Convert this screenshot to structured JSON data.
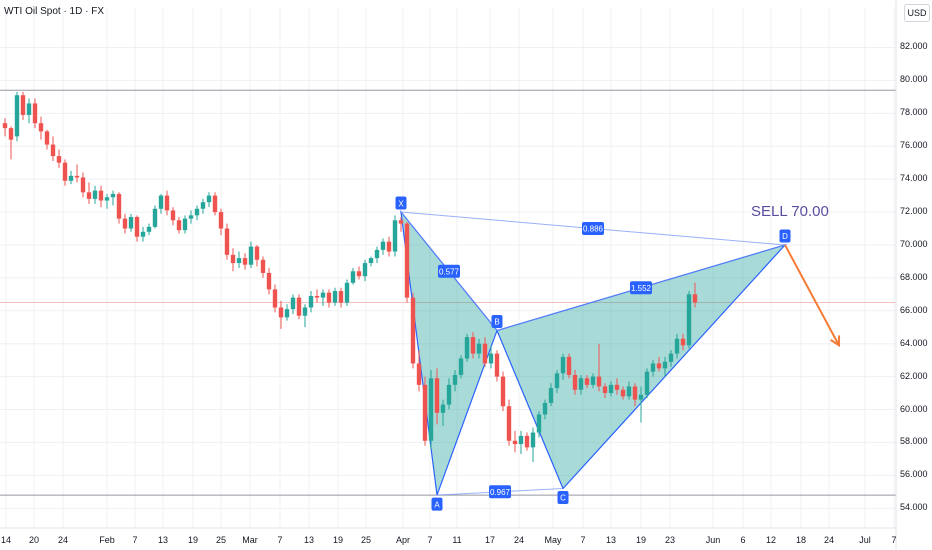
{
  "header": {
    "title": "WTI Oil Spot · 1D · FX",
    "currency": "USD"
  },
  "colors": {
    "up": "#26a69a",
    "down": "#ef5350",
    "pattern_fill": "#26a69a",
    "pattern_line": "#2962ff",
    "arrow": "#f57c36",
    "label_bg": "#2962ff",
    "sell_text": "#5b4c9e",
    "grid": "#eef0f4"
  },
  "chart_data": {
    "type": "candlestick",
    "symbol": "WTI Oil Spot",
    "interval": "1D",
    "ylim": [
      52.8,
      84.4
    ],
    "y_ticks": [
      82,
      80,
      78,
      76,
      74,
      72,
      70,
      68,
      66,
      64,
      62,
      60,
      58,
      56,
      54
    ],
    "y_tick_labels": [
      "82.000",
      "80.000",
      "78.000",
      "76.000",
      "74.000",
      "72.000",
      "70.000",
      "68.000",
      "66.000",
      "64.000",
      "62.000",
      "60.000",
      "58.000",
      "56.000",
      "54.000"
    ],
    "x_tick_labels": [
      "14",
      "20",
      "24",
      "Feb",
      "7",
      "13",
      "19",
      "25",
      "Mar",
      "7",
      "13",
      "19",
      "25",
      "Apr",
      "7",
      "11",
      "17",
      "24",
      "May",
      "7",
      "13",
      "19",
      "23",
      "Jun",
      "6",
      "12",
      "18",
      "24",
      "Jul",
      "7"
    ],
    "horizontal_lines": [
      {
        "name": "resistance",
        "value": 79.4
      },
      {
        "name": "support",
        "value": 54.8
      },
      {
        "name": "current",
        "value": 66.5
      }
    ],
    "candles": [
      [
        77.4,
        77.7,
        76.6,
        77.1
      ],
      [
        77.1,
        77.2,
        75.2,
        76.4
      ],
      [
        76.6,
        79.3,
        76.3,
        79.1
      ],
      [
        79.1,
        79.3,
        77.6,
        77.9
      ],
      [
        77.9,
        78.9,
        77.4,
        78.6
      ],
      [
        78.6,
        78.9,
        77.1,
        77.4
      ],
      [
        77.4,
        77.8,
        76.4,
        76.9
      ],
      [
        76.9,
        77.0,
        75.8,
        76.1
      ],
      [
        76.1,
        76.6,
        75.1,
        75.4
      ],
      [
        75.4,
        75.8,
        74.7,
        75.0
      ],
      [
        75.0,
        75.2,
        73.6,
        73.9
      ],
      [
        73.9,
        74.5,
        73.7,
        74.2
      ],
      [
        74.2,
        74.9,
        73.8,
        74.1
      ],
      [
        74.1,
        74.4,
        72.9,
        73.2
      ],
      [
        73.2,
        73.8,
        72.5,
        72.8
      ],
      [
        72.8,
        73.6,
        72.5,
        73.3
      ],
      [
        73.3,
        73.6,
        72.3,
        72.7
      ],
      [
        72.7,
        73.1,
        72.2,
        72.9
      ],
      [
        72.9,
        73.3,
        72.4,
        73.1
      ],
      [
        73.1,
        73.2,
        71.3,
        71.6
      ],
      [
        71.6,
        71.9,
        70.7,
        71.0
      ],
      [
        71.0,
        71.9,
        70.8,
        71.7
      ],
      [
        71.7,
        71.8,
        70.2,
        70.5
      ],
      [
        70.5,
        71.1,
        70.2,
        70.8
      ],
      [
        70.8,
        71.3,
        70.6,
        71.1
      ],
      [
        71.1,
        72.4,
        71.0,
        72.2
      ],
      [
        72.2,
        73.1,
        71.9,
        73.0
      ],
      [
        73.0,
        73.3,
        71.8,
        72.1
      ],
      [
        72.1,
        72.3,
        71.2,
        71.5
      ],
      [
        71.5,
        71.7,
        70.7,
        70.9
      ],
      [
        70.9,
        71.8,
        70.7,
        71.6
      ],
      [
        71.6,
        72.1,
        71.3,
        71.8
      ],
      [
        71.8,
        72.4,
        71.5,
        72.2
      ],
      [
        72.2,
        72.8,
        71.9,
        72.6
      ],
      [
        72.6,
        73.2,
        72.3,
        73.0
      ],
      [
        73.0,
        73.2,
        71.8,
        72.0
      ],
      [
        72.0,
        72.2,
        70.6,
        71.0
      ],
      [
        71.0,
        71.3,
        69.1,
        69.4
      ],
      [
        69.4,
        69.8,
        68.4,
        68.9
      ],
      [
        68.9,
        69.6,
        68.6,
        69.2
      ],
      [
        69.2,
        69.5,
        68.5,
        68.8
      ],
      [
        68.8,
        70.2,
        68.6,
        69.9
      ],
      [
        69.9,
        70.0,
        68.7,
        69.1
      ],
      [
        69.1,
        69.3,
        68.0,
        68.3
      ],
      [
        68.3,
        68.6,
        67.0,
        67.3
      ],
      [
        67.3,
        67.6,
        65.9,
        66.2
      ],
      [
        66.2,
        66.6,
        64.9,
        65.6
      ],
      [
        65.6,
        66.4,
        65.4,
        66.1
      ],
      [
        66.1,
        67.0,
        65.8,
        66.8
      ],
      [
        66.8,
        67.0,
        65.5,
        65.7
      ],
      [
        65.7,
        66.4,
        65.0,
        66.2
      ],
      [
        66.2,
        67.2,
        65.9,
        66.9
      ],
      [
        66.9,
        67.3,
        66.5,
        66.8
      ],
      [
        66.8,
        67.3,
        66.3,
        67.1
      ],
      [
        67.1,
        67.3,
        66.2,
        66.5
      ],
      [
        66.5,
        67.4,
        66.3,
        67.2
      ],
      [
        67.2,
        67.4,
        66.2,
        66.5
      ],
      [
        66.5,
        67.9,
        66.3,
        67.7
      ],
      [
        67.7,
        68.6,
        67.6,
        68.4
      ],
      [
        68.4,
        68.7,
        67.9,
        68.1
      ],
      [
        68.1,
        69.1,
        67.8,
        68.9
      ],
      [
        68.9,
        69.3,
        68.7,
        69.2
      ],
      [
        69.2,
        69.9,
        68.9,
        69.7
      ],
      [
        69.7,
        70.4,
        69.4,
        70.2
      ],
      [
        70.2,
        70.5,
        69.3,
        69.6
      ],
      [
        69.6,
        71.8,
        69.3,
        71.5
      ],
      [
        71.5,
        71.7,
        70.8,
        71.3
      ],
      [
        71.3,
        71.4,
        66.5,
        66.8
      ],
      [
        66.8,
        67.1,
        62.5,
        62.8
      ],
      [
        62.8,
        63.6,
        61.1,
        61.5
      ],
      [
        61.5,
        62.0,
        57.8,
        58.1
      ],
      [
        58.1,
        62.4,
        57.6,
        61.9
      ],
      [
        61.9,
        62.5,
        59.1,
        59.8
      ],
      [
        59.8,
        60.6,
        59.0,
        60.3
      ],
      [
        60.3,
        61.9,
        60.0,
        61.5
      ],
      [
        61.5,
        62.4,
        61.1,
        62.1
      ],
      [
        62.1,
        63.3,
        61.9,
        63.1
      ],
      [
        63.1,
        64.6,
        62.9,
        64.4
      ],
      [
        64.4,
        64.7,
        63.1,
        63.4
      ],
      [
        63.4,
        64.3,
        63.1,
        64.0
      ],
      [
        64.0,
        64.4,
        62.6,
        62.8
      ],
      [
        62.8,
        63.9,
        62.5,
        63.4
      ],
      [
        63.4,
        63.6,
        61.7,
        62.0
      ],
      [
        62.0,
        62.3,
        59.9,
        60.2
      ],
      [
        60.2,
        60.6,
        57.8,
        58.1
      ],
      [
        58.1,
        58.7,
        57.4,
        57.9
      ],
      [
        57.9,
        58.7,
        57.3,
        58.4
      ],
      [
        58.4,
        58.6,
        57.5,
        57.7
      ],
      [
        57.7,
        58.9,
        56.8,
        58.6
      ],
      [
        58.6,
        59.9,
        58.3,
        59.7
      ],
      [
        59.7,
        60.6,
        59.4,
        60.4
      ],
      [
        60.4,
        61.6,
        60.2,
        61.3
      ],
      [
        61.3,
        62.4,
        61.0,
        62.2
      ],
      [
        62.2,
        63.4,
        61.8,
        63.2
      ],
      [
        63.2,
        63.4,
        61.9,
        62.1
      ],
      [
        62.1,
        62.4,
        60.9,
        61.2
      ],
      [
        61.2,
        62.1,
        60.9,
        61.9
      ],
      [
        61.9,
        62.1,
        61.3,
        61.5
      ],
      [
        61.5,
        62.2,
        61.3,
        62.0
      ],
      [
        62.0,
        64.0,
        61.1,
        61.4
      ],
      [
        61.4,
        61.6,
        60.7,
        61.0
      ],
      [
        61.0,
        61.7,
        60.8,
        61.5
      ],
      [
        61.5,
        61.9,
        60.9,
        61.2
      ],
      [
        61.2,
        61.4,
        60.6,
        60.8
      ],
      [
        60.8,
        61.7,
        60.6,
        61.4
      ],
      [
        61.4,
        61.6,
        60.2,
        60.6
      ],
      [
        60.6,
        61.4,
        59.2,
        60.9
      ],
      [
        60.9,
        62.5,
        60.7,
        62.3
      ],
      [
        62.3,
        63.0,
        62.0,
        62.8
      ],
      [
        62.8,
        63.2,
        62.3,
        62.5
      ],
      [
        62.5,
        63.2,
        62.0,
        62.9
      ],
      [
        62.9,
        63.6,
        62.6,
        63.4
      ],
      [
        63.4,
        64.6,
        63.1,
        64.3
      ],
      [
        64.3,
        64.6,
        63.6,
        63.9
      ],
      [
        63.9,
        67.2,
        63.7,
        67.0
      ],
      [
        67.0,
        67.7,
        66.2,
        66.5
      ]
    ],
    "harmonic_pattern": {
      "points": [
        {
          "label": "X",
          "date_index": 66,
          "value": 72.0
        },
        {
          "label": "A",
          "date_index": 72,
          "value": 54.8
        },
        {
          "label": "B",
          "date_index": 82,
          "value": 64.8
        },
        {
          "label": "C",
          "date_index": 93,
          "value": 55.2
        },
        {
          "label": "D",
          "date_index": 130,
          "value": 70.0
        }
      ],
      "ratios": [
        {
          "label": "0.577",
          "between": [
            "X",
            "B"
          ]
        },
        {
          "label": "0.967",
          "between": [
            "A",
            "C"
          ]
        },
        {
          "label": "1.552",
          "between": [
            "B",
            "D"
          ]
        },
        {
          "label": "0.886",
          "between": [
            "X",
            "D"
          ]
        }
      ]
    },
    "projection_arrow": {
      "from": {
        "date_index": 130,
        "value": 70.0
      },
      "to": {
        "date_index": 139,
        "value": 63.9
      }
    },
    "annotation": {
      "text": "SELL 70.00",
      "value": 70.0
    }
  }
}
